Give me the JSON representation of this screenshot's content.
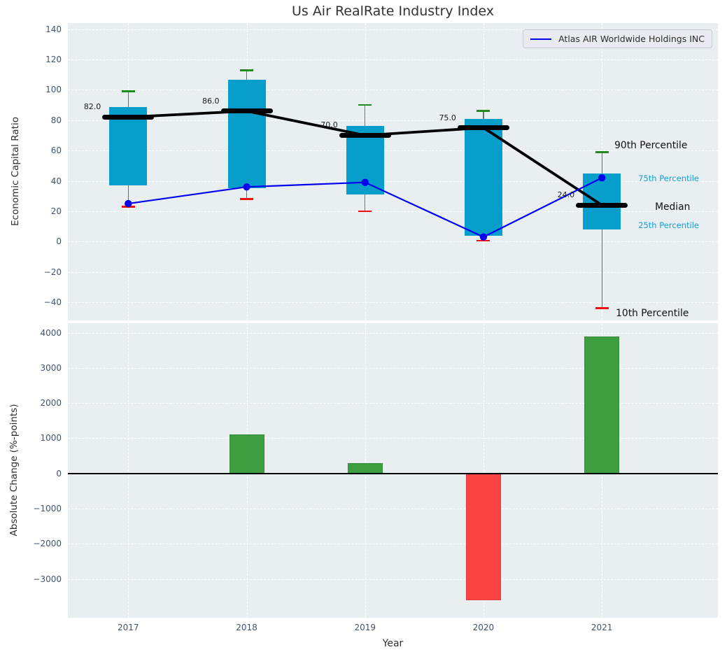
{
  "title": "Us Air RealRate Industry Index",
  "legend": {
    "label": "Atlas AIR Worldwide Holdings INC"
  },
  "annotations": {
    "p90": "90th Percentile",
    "p75": "75th Percentile",
    "median": "Median",
    "p25": "25th Percentile",
    "p10": "10th Percentile"
  },
  "colors": {
    "box": "#089ecc",
    "cap_high": "#1e8b1e",
    "cap_low": "#ee1111",
    "median": "#000000",
    "company_line": "#0000ee",
    "bar_positive": "#3d9e40",
    "bar_negative": "#fa4343",
    "plot_bg": "#e9eef0",
    "tick_text": "#42546a",
    "annotation_cyan": "#119fd4"
  },
  "chart_data": [
    {
      "type": "boxplot-line",
      "panel": "top",
      "title": "Us Air RealRate Industry Index",
      "ylabel": "Economic Capital Ratio",
      "x": [
        2017,
        2018,
        2019,
        2020,
        2021
      ],
      "percentiles": {
        "p90": [
          99,
          113,
          90,
          86,
          59
        ],
        "p75": [
          88.5,
          106.5,
          76,
          81,
          45
        ],
        "median": [
          82,
          86,
          70,
          75,
          24
        ],
        "p25": [
          37,
          35,
          31,
          4,
          8
        ],
        "p10": [
          23,
          28,
          20,
          0.5,
          -44
        ]
      },
      "median_labels": [
        "82.0",
        "86.0",
        "70.0",
        "75.0",
        "24.0"
      ],
      "series": [
        {
          "name": "Atlas AIR Worldwide Holdings INC",
          "values": [
            25,
            36,
            39,
            3,
            42
          ]
        }
      ],
      "yticks": [
        140,
        120,
        100,
        80,
        60,
        40,
        20,
        0,
        -20,
        -40
      ],
      "ylim": [
        -52,
        144
      ],
      "legend_position": "upper right",
      "grid": true
    },
    {
      "type": "bar",
      "panel": "bottom",
      "ylabel": "Absolute Change (%-points)",
      "xlabel": "Year",
      "categories": [
        "2017",
        "2018",
        "2019",
        "2020",
        "2021"
      ],
      "values": [
        0,
        1100,
        300,
        -3600,
        3900
      ],
      "bar_colors": [
        "none",
        "#3d9e40",
        "#3d9e40",
        "#fa4343",
        "#3d9e40"
      ],
      "yticks": [
        4000,
        3000,
        2000,
        1000,
        0,
        -1000,
        -2000,
        -3000
      ],
      "ylim": [
        -4100,
        4270
      ],
      "grid": true
    }
  ]
}
